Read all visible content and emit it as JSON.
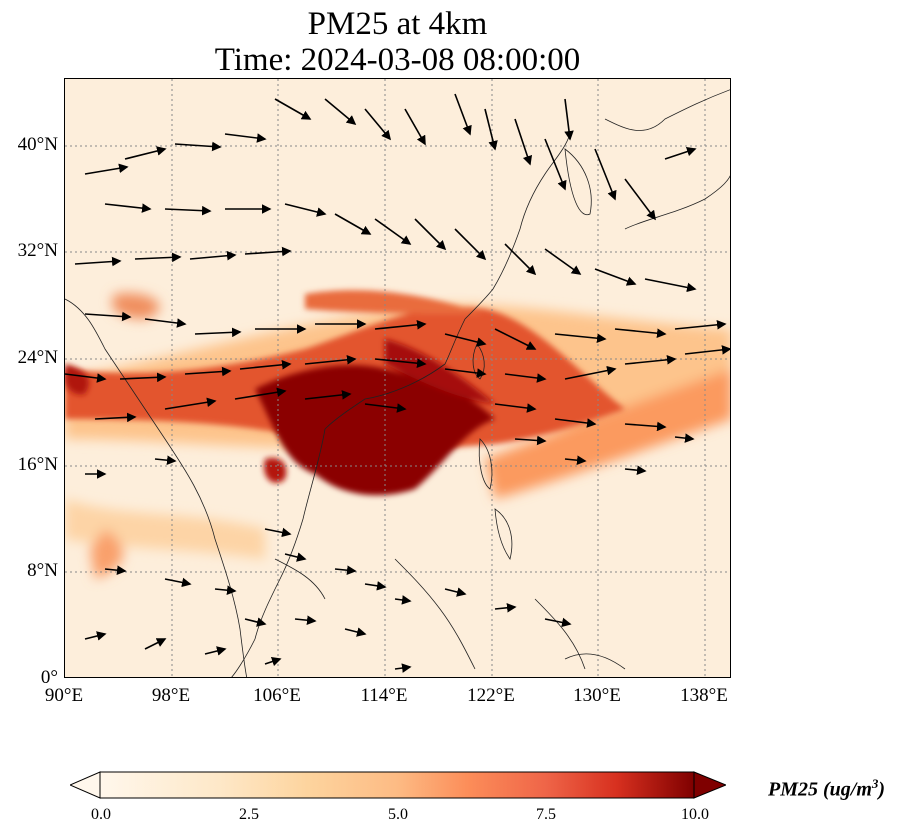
{
  "title": {
    "line1": "PM25 at 4km",
    "line2": "Time: 2024-03-08 08:00:00"
  },
  "map": {
    "projection": "PlateCarree",
    "lon_range": [
      90,
      140
    ],
    "lat_range": [
      0,
      45
    ],
    "gridlines": true,
    "lat_ticks": [
      "40°N",
      "32°N",
      "24°N",
      "16°N",
      "8°N",
      "0°"
    ],
    "lon_ticks": [
      "90°E",
      "98°E",
      "106°E",
      "114°E",
      "122°E",
      "130°E",
      "138°E"
    ],
    "wind_arrows": "black quiver vectors, predominantly westerly/northwesterly",
    "colors": {
      "background": "#fef4e6",
      "low": "#fff5eb",
      "mid": "#fdae6b",
      "high": "#8b0000"
    }
  },
  "colorbar": {
    "label": "PM25 (ug/m³)",
    "label_display": "PM25 (ug/m",
    "label_sup": "3",
    "label_close": ")",
    "ticks": [
      "0.0",
      "2.5",
      "5.0",
      "7.5",
      "10.0"
    ],
    "min": 0,
    "max": 10,
    "extend": "both",
    "cmap": "OrRd"
  }
}
